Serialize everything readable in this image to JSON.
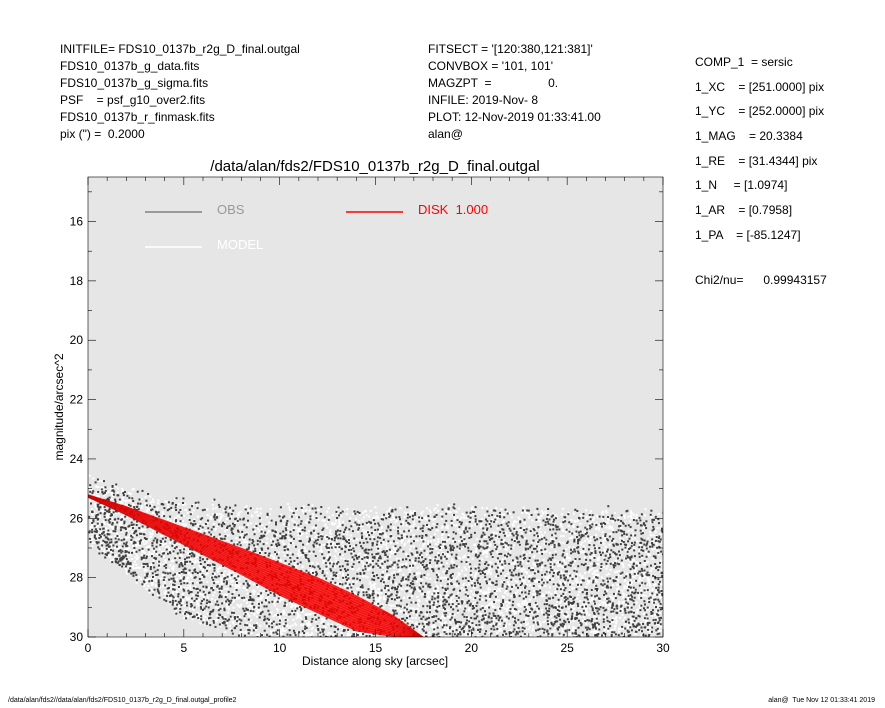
{
  "header_left": [
    "INITFILE= FDS10_0137b_r2g_D_final.outgal",
    "FDS10_0137b_g_data.fits",
    "FDS10_0137b_g_sigma.fits",
    "PSF    = psf_g10_over2.fits",
    "FDS10_0137b_r_finmask.fits",
    "pix (\") =  0.2000"
  ],
  "header_mid": [
    "FITSECT = '[120:380,121:381]'",
    "CONVBOX = '101, 101'",
    "MAGZPT  =                 0.",
    "INFILE: 2019-Nov- 8",
    "PLOT: 12-Nov-2019 01:33:41.00",
    "alan@"
  ],
  "header_right": [
    "COMP_1  = sersic",
    "1_XC    = [251.0000] pix",
    "1_YC    = [252.0000] pix",
    "1_MAG    = 20.3384",
    "1_RE    = [31.4344] pix",
    "1_N     = [1.0974]",
    "1_AR    = [0.7958]",
    "1_PA    = [-85.1247]"
  ],
  "chi2": "Chi2/nu=      0.99943157",
  "footer_left": "/data/alan/fds2//data/alan/fds2/FDS10_0137b_r2g_D_final.outgal_profile2",
  "footer_right": "alan@  Tue Nov 12 01:33:41 2019",
  "chart_data": {
    "type": "scatter",
    "title": "/data/alan/fds2/FDS10_0137b_r2g_D_final.outgal",
    "xlabel": "Distance along sky [arcsec]",
    "ylabel": "magnitude/arcsec^2",
    "xlim": [
      0,
      30
    ],
    "ylim": [
      30,
      14.5
    ],
    "y_inverted": true,
    "x_ticks": [
      0,
      5,
      10,
      15,
      20,
      25,
      30
    ],
    "y_ticks": [
      16,
      18,
      20,
      22,
      24,
      26,
      28,
      30
    ],
    "background_color": "#e6e6e6",
    "legend": [
      {
        "name": "OBS",
        "color": "#808080"
      },
      {
        "name": "MODEL",
        "color": "#ffffff"
      },
      {
        "name": "DISK  1.000",
        "color": "#ff0000"
      }
    ],
    "series": [
      {
        "name": "OBS",
        "color": "#404040",
        "description_points": "dense scatter of observed pixel values",
        "envelope": {
          "x": [
            0,
            2,
            5,
            10,
            15,
            20,
            25,
            30
          ],
          "bright": [
            24.6,
            25.0,
            25.4,
            25.6,
            25.6,
            25.6,
            25.7,
            25.7
          ],
          "faint": [
            26.5,
            27.5,
            29.0,
            30.0,
            30.0,
            30.0,
            30.0,
            30.0
          ]
        }
      },
      {
        "name": "MODEL",
        "color": "#ffffff",
        "envelope": {
          "x": [
            0,
            2,
            5,
            10,
            15,
            20,
            25,
            30
          ],
          "bright": [
            24.6,
            25.0,
            25.4,
            25.6,
            25.6,
            25.6,
            25.7,
            25.7
          ],
          "faint": [
            26.5,
            27.5,
            29.0,
            30.0,
            30.0,
            30.0,
            30.0,
            30.0
          ]
        }
      },
      {
        "name": "DISK  1.000",
        "color": "#ff0000",
        "x": [
          0.0,
          2.0,
          5.0,
          8.0,
          10.0,
          12.0,
          14.0,
          16.0,
          17.5
        ],
        "y_bright": [
          25.2,
          25.6,
          26.3,
          27.0,
          27.5,
          28.0,
          28.6,
          29.3,
          30.0
        ],
        "y_faint": [
          25.3,
          25.9,
          26.9,
          27.9,
          28.6,
          29.2,
          29.8,
          30.0,
          30.0
        ]
      }
    ]
  }
}
